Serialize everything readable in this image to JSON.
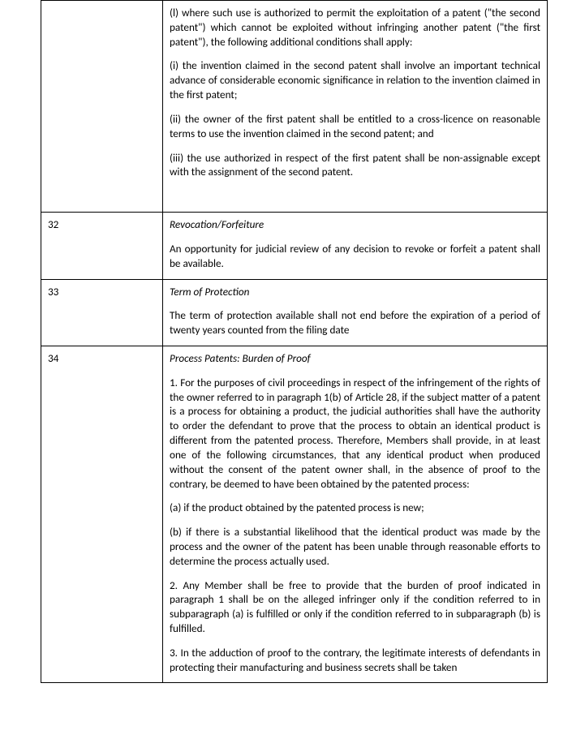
{
  "rows": [
    {
      "article": "",
      "content": [
        {
          "t": "(l) where such use is authorized to permit the exploitation of a patent (\"the second patent\") which cannot be exploited without infringing another patent (\"the first patent\"), the following additional conditions shall apply:",
          "style": "plain"
        },
        {
          "t": "(i) the invention claimed in the second patent shall involve an important technical advance of considerable economic significance in relation to the invention claimed in the first patent;",
          "style": "plain"
        },
        {
          "t": "(ii) the owner of the first patent shall be entitled to a cross-licence on reasonable terms to use the invention claimed in the second patent; and",
          "style": "plain"
        },
        {
          "t": "(iii) the use authorized in respect of the first patent shall be non-assignable except with the assignment of the second patent.",
          "style": "plain"
        }
      ],
      "pos": "top",
      "pad": true
    },
    {
      "article": "32",
      "content": [
        {
          "t": "Revocation/Forfeiture",
          "style": "italic"
        },
        {
          "t": "An opportunity for judicial review of any decision to revoke or forfeit a patent shall be available.",
          "style": "plain"
        }
      ],
      "pos": "mid"
    },
    {
      "article": "33",
      "content": [
        {
          "t": "Term of Protection",
          "style": "italic"
        },
        {
          "t": "The term of protection available shall not end before the expiration of a period of twenty years counted from the filing date",
          "style": "plain"
        }
      ],
      "pos": "mid"
    },
    {
      "article": "34",
      "content": [
        {
          "t": "Process Patents: Burden of Proof",
          "style": "italic"
        },
        {
          "t": "1. For the purposes of civil proceedings in respect of the infringement of the rights of the owner referred to in paragraph 1(b) of Article 28, if the subject matter of a patent is a process for obtaining a product, the judicial authorities shall have the authority to order the defendant to prove that the process to obtain an identical product is different from the patented process. Therefore, Members shall provide, in at least one of the following circumstances, that any identical product when produced without the consent of the patent owner shall, in the absence of proof to the contrary, be deemed to have been obtained by the patented process:",
          "style": "plain"
        },
        {
          "t": "(a) if the product obtained by the patented process is new;",
          "style": "plain"
        },
        {
          "t": "(b) if there is a substantial likelihood that the identical product was made by the process and the owner of the patent has been unable through reasonable efforts to determine the process actually used.",
          "style": "plain"
        },
        {
          "t": "2. Any Member shall be free to provide that the burden of proof indicated in paragraph 1 shall be on the alleged infringer only if the condition referred to in subparagraph (a) is fulfilled or only if the condition referred to in subparagraph (b) is fulfilled.",
          "style": "plain"
        },
        {
          "t": "3. In the adduction of proof to the contrary, the legitimate interests of defendants in protecting their manufacturing and business secrets shall be taken",
          "style": "plain"
        }
      ],
      "pos": "bottom"
    }
  ]
}
